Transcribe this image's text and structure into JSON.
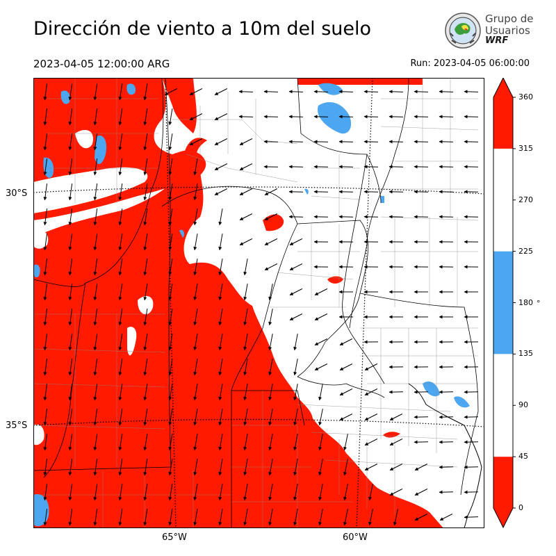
{
  "title": "Dirección de viento a 10m del suelo",
  "valid_time": "2023-04-05 12:00:00 ARG",
  "run_time": "Run: 2023-04-05 06:00:00",
  "logo": {
    "line1": "Grupo de",
    "line2": "Usuarios",
    "line3": "WRF"
  },
  "map": {
    "lat_labels": [
      "30°S",
      "35°S"
    ],
    "lon_labels": [
      "65°W",
      "60°W"
    ],
    "quantity": "wind direction at 10 m",
    "arrow_icon": "wind-arrow-icon"
  },
  "colorbar": {
    "ticks": [
      "0",
      "45",
      "90",
      "135",
      "180",
      "225",
      "270",
      "315",
      "360"
    ],
    "unit": "°",
    "bands": [
      {
        "from": 0,
        "to": 45,
        "color": "#ff1a00"
      },
      {
        "from": 45,
        "to": 135,
        "color": "#ffffff"
      },
      {
        "from": 135,
        "to": 225,
        "color": "#4da6f0"
      },
      {
        "from": 225,
        "to": 315,
        "color": "#ffffff"
      },
      {
        "from": 315,
        "to": 360,
        "color": "#ff1a00"
      }
    ]
  },
  "colors": {
    "red": "#ff1a00",
    "blue": "#4da6f0",
    "white": "#ffffff"
  }
}
